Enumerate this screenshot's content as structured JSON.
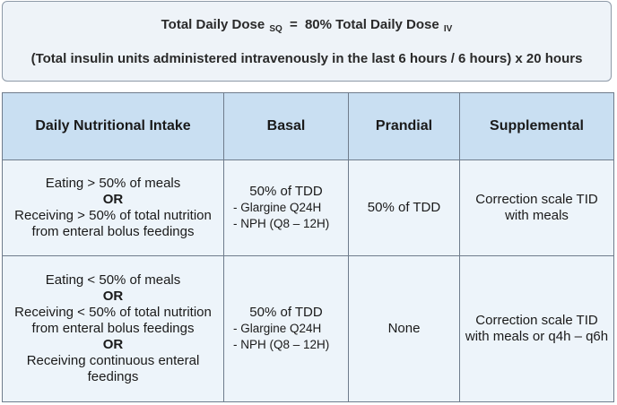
{
  "formula": {
    "line1_lhs": "Total Daily Dose",
    "line1_lhs_sub": "SQ",
    "line1_eq": "=",
    "line1_rhs": "80% Total Daily Dose",
    "line1_rhs_sub": "IV",
    "line2": "(Total insulin units administered intravenously in the last 6 hours / 6 hours) x 20 hours"
  },
  "table": {
    "headers": [
      "Daily Nutritional Intake",
      "Basal",
      "Prandial",
      "Supplemental"
    ],
    "rows": [
      {
        "intake": [
          "Eating > 50% of meals",
          "OR",
          "Receiving > 50% of total nutrition",
          "from enteral bolus feedings"
        ],
        "basal": {
          "main": "50% of TDD",
          "items": [
            "- Glargine Q24H",
            "- NPH (Q8 – 12H)"
          ]
        },
        "prandial": "50% of TDD",
        "supplemental": [
          "Correction scale TID",
          "with meals"
        ]
      },
      {
        "intake": [
          "Eating < 50% of meals",
          "OR",
          "Receiving < 50% of total nutrition",
          "from enteral bolus feedings",
          "OR",
          "Receiving continuous enteral",
          "feedings"
        ],
        "basal": {
          "main": "50% of TDD",
          "items": [
            "- Glargine Q24H",
            "- NPH (Q8 – 12H)"
          ]
        },
        "prandial": "None",
        "supplemental": [
          "Correction scale TID",
          "with meals or q4h – q6h"
        ]
      }
    ]
  }
}
